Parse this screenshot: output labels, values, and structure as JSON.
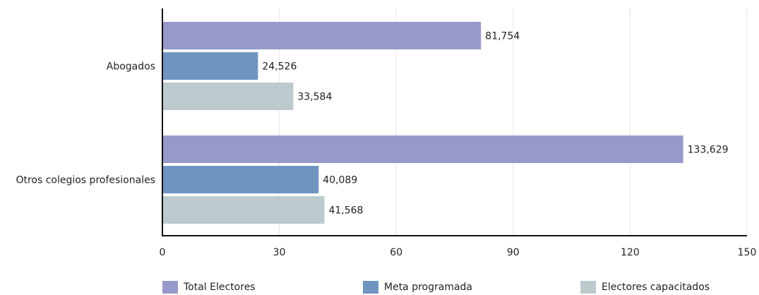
{
  "chart_data": {
    "type": "bar",
    "orientation": "horizontal",
    "categories": [
      "Abogados",
      "Otros colegios profesionales"
    ],
    "series": [
      {
        "name": "Total Electores",
        "values": [
          81.754,
          133.629
        ],
        "labels": [
          "81,754",
          "133,629"
        ],
        "color": "#9699c9"
      },
      {
        "name": "Meta programada",
        "values": [
          24.526,
          40.089
        ],
        "labels": [
          "24,526",
          "40,089"
        ],
        "color": "#6f94bf"
      },
      {
        "name": "Electores capacitados",
        "values": [
          33.584,
          41.568
        ],
        "labels": [
          "33,584",
          "41,568"
        ],
        "color": "#bccacd"
      }
    ],
    "xlim": [
      0,
      150
    ],
    "xticks": [
      "0",
      "30",
      "60",
      "90",
      "120",
      "150"
    ],
    "title": "",
    "xlabel": "",
    "ylabel": "",
    "grid": true,
    "legend_position": "bottom"
  }
}
